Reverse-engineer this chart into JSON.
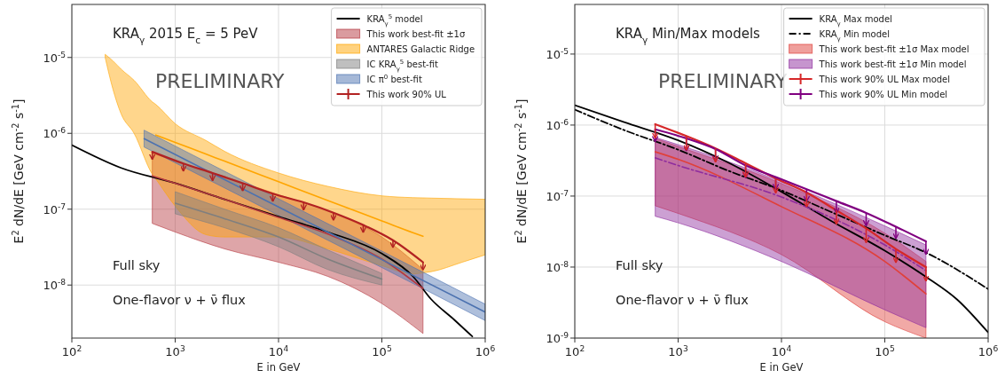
{
  "chart_data": [
    {
      "type": "line",
      "xlabel": "E in GeV",
      "ylabel": "E$^{2}$ dN/dE [GeV cm$^{-2}$ s$^{-1}$]",
      "log": "xy",
      "grid": true,
      "legend": "top right",
      "xlim": [
        100,
        1000000
      ],
      "ylim": [
        2e-09,
        5e-05
      ],
      "xticks": [
        {
          "value": 100,
          "label": "10$^{2}$"
        },
        {
          "value": 1000,
          "label": "10$^{3}$"
        },
        {
          "value": 10000,
          "label": "10$^{4}$"
        },
        {
          "value": 100000,
          "label": "10$^{5}$"
        },
        {
          "value": 1000000,
          "label": "10$^{6}$"
        }
      ],
      "yticks": [
        {
          "value": 1e-08,
          "label": "10$^{-8}$"
        },
        {
          "value": 1e-07,
          "label": "10$^{-7}$"
        },
        {
          "value": 1e-06,
          "label": "10$^{-6}$"
        },
        {
          "value": 1e-05,
          "label": "10$^{-5}$"
        }
      ],
      "annotations": [
        "KRA$_{γ}$ 2015  E$_{c}$ = 5 PeV",
        "PRELIMINARY",
        "Full sky",
        "One-flavor ν + ν̄ flux"
      ],
      "series": [
        {
          "name": "KRA$_{γ}$$^{5}$ model",
          "type": "line",
          "color": "#000000",
          "x": [
            100,
            300,
            1000,
            3000,
            10000,
            30000,
            100000,
            200000,
            300000,
            500000,
            750000
          ],
          "values": [
            7e-07,
            3.5e-07,
            2.2e-07,
            1.35e-07,
            8e-08,
            5e-08,
            2.6e-08,
            1.3e-08,
            6.5e-09,
            3.5e-09,
            2.1e-09
          ]
        },
        {
          "name": "This work best-fit ±1σ",
          "type": "line",
          "color": "#b5383f",
          "x": [
            600,
            1000,
            3000,
            10000,
            30000,
            100000,
            250000
          ],
          "values": [
            2.75e-07,
            2.2e-07,
            1.35e-07,
            7.8e-08,
            4.7e-08,
            2.2e-08,
            9e-09
          ],
          "lower": [
            6.5e-08,
            5e-08,
            3e-08,
            2e-08,
            1.3e-08,
            5.7e-09,
            2.3e-09
          ],
          "upper": [
            5.5e-07,
            4.3e-07,
            2.7e-07,
            1.55e-07,
            9.5e-08,
            4.3e-08,
            1.6e-08
          ]
        },
        {
          "name": "ANTARES Galactic Ridge",
          "type": "line",
          "color": "#ffa500",
          "x": [
            210,
            250,
            300,
            400,
            600,
            650,
            1000,
            2000,
            3000,
            10000,
            30000,
            100000,
            200000,
            250000,
            300000,
            600000,
            1000000
          ],
          "values": [
            null,
            null,
            null,
            null,
            null,
            9.5e-07,
            7.6e-07,
            5.3e-07,
            4.3e-07,
            2.3e-07,
            1.3e-07,
            7e-08,
            4.9e-08,
            4.4e-08,
            null,
            null,
            null
          ],
          "lower": [
            1e-05,
            3.8e-06,
            1.8e-06,
            1e-06,
            2.9e-07,
            2.5e-07,
            1.1e-07,
            4.6e-08,
            4.3e-08,
            4.3e-08,
            3e-08,
            1.8e-08,
            1.4e-08,
            1.45e-08,
            1.5e-08,
            2e-08,
            2.5e-08
          ],
          "upper": [
            1.1e-05,
            9e-06,
            7e-06,
            5e-06,
            2.6e-06,
            2.4e-06,
            1.34e-06,
            8e-07,
            5.8e-07,
            3e-07,
            2e-07,
            1.5e-07,
            1.42e-07,
            1.41e-07,
            1.4e-07,
            1.37e-07,
            1.35e-07
          ]
        },
        {
          "name": "IC KRA$_{γ}$$^{5}$ best-fit",
          "type": "line",
          "color": "#7f7f7f",
          "x": [
            1000,
            3000,
            10000,
            30000,
            100000
          ],
          "values": [
            1.2e-07,
            7.5e-08,
            4.3e-08,
            2.2e-08,
            1.2e-08
          ],
          "lower": [
            8.7e-08,
            5.7e-08,
            3.2e-08,
            1.6e-08,
            1e-08
          ],
          "upper": [
            1.7e-07,
            1e-07,
            5.7e-08,
            2.9e-08,
            1.42e-08
          ]
        },
        {
          "name": "IC π$^{0}$ best-fit",
          "type": "line",
          "color": "#4c72b0",
          "x": [
            500,
            10000,
            100000,
            1000000
          ],
          "values": [
            8.5e-07,
            1.07e-07,
            2.16e-08,
            4.4e-09
          ],
          "lower": [
            6.6e-07,
            8.3e-08,
            1.7e-08,
            3.4e-09
          ],
          "upper": [
            1.1e-06,
            1.37e-07,
            2.8e-08,
            5.6e-09
          ]
        },
        {
          "name": "This work 90% UL",
          "type": "line",
          "color": "#b22222",
          "x": [
            600,
            1200,
            2300,
            4500,
            8800,
            17500,
            34000,
            66000,
            128000,
            250000
          ],
          "values": [
            5.7e-07,
            4e-07,
            3e-07,
            2.2e-07,
            1.6e-07,
            1.23e-07,
            9e-08,
            6.2e-08,
            3.9e-08,
            2e-08
          ],
          "errors": [
            [
              4.5e-07,
              5.7e-07
            ],
            [
              3.15e-07,
              4e-07
            ],
            [
              2.36e-07,
              3e-07
            ],
            [
              1.73e-07,
              2.2e-07
            ],
            [
              1.26e-07,
              1.6e-07
            ],
            [
              9.7e-08,
              1.23e-07
            ],
            [
              7.1e-08,
              9e-08
            ],
            [
              4.9e-08,
              6.2e-08
            ],
            [
              3.1e-08,
              3.9e-08
            ],
            [
              1.57e-08,
              2e-08
            ]
          ]
        }
      ]
    },
    {
      "type": "line",
      "xlabel": "E in GeV",
      "ylabel": "E$^{2}$ dN/dE [GeV cm$^{-2}$ s$^{-1}$]",
      "log": "xy",
      "grid": true,
      "legend": "top right",
      "xlim": [
        100,
        1000000
      ],
      "ylim": [
        1e-09,
        5e-05
      ],
      "xticks": [
        {
          "value": 100,
          "label": "10$^{2}$"
        },
        {
          "value": 1000,
          "label": "10$^{3}$"
        },
        {
          "value": 10000,
          "label": "10$^{4}$"
        },
        {
          "value": 100000,
          "label": "10$^{5}$"
        },
        {
          "value": 1000000,
          "label": "10$^{6}$"
        }
      ],
      "yticks": [
        {
          "value": 1e-09,
          "label": "10$^{-9}$"
        },
        {
          "value": 1e-08,
          "label": "10$^{-8}$"
        },
        {
          "value": 1e-07,
          "label": "10$^{-7}$"
        },
        {
          "value": 1e-06,
          "label": "10$^{-6}$"
        },
        {
          "value": 1e-05,
          "label": "10$^{-5}$"
        }
      ],
      "annotations": [
        "KRA$_{γ}$ Min/Max models",
        "PRELIMINARY",
        "Full sky",
        "One-flavor ν + ν̄ flux"
      ],
      "series": [
        {
          "name": "KRA$_{γ}$ Max model",
          "type": "line",
          "color": "#000000",
          "x": [
            100,
            300,
            1000,
            3000,
            10000,
            30000,
            100000,
            250000,
            500000,
            1000000
          ],
          "values": [
            1.9e-06,
            1.1e-06,
            6.1e-07,
            3e-07,
            1.15e-07,
            4.5e-08,
            1.7e-08,
            7.3e-09,
            3.5e-09,
            1.2e-09
          ]
        },
        {
          "name": "KRA$_{γ}$ Min model",
          "type": "line",
          "line_style": "dashdot",
          "color": "#000000",
          "x": [
            100,
            300,
            1000,
            3000,
            10000,
            30000,
            100000,
            250000,
            1000000
          ],
          "values": [
            1.65e-06,
            8.5e-07,
            4.5e-07,
            2.3e-07,
            1.2e-07,
            6e-08,
            2.8e-08,
            1.6e-08,
            4.9e-09
          ]
        },
        {
          "name": "This work best-fit ±1σ Max model",
          "type": "line",
          "color": "#e0403a",
          "x": [
            600,
            1000,
            10000,
            100000,
            250000
          ],
          "values": [
            4.2e-07,
            3.3e-07,
            7.1e-08,
            1.2e-08,
            4.2e-09
          ],
          "lower": [
            7.3e-08,
            5.7e-08,
            1.5e-08,
            1.7e-09,
            1e-09
          ],
          "upper": [
            6.5e-07,
            5e-07,
            1.5e-07,
            3e-08,
            1.2e-08
          ]
        },
        {
          "name": "This work best-fit ±1σ Min model",
          "type": "line",
          "line_style": "dashdot",
          "color": "#8e2c9e",
          "x": [
            600,
            1000,
            10000,
            100000,
            250000
          ],
          "values": [
            3.45e-07,
            2.7e-07,
            9.7e-08,
            2.05e-08,
            8.9e-09
          ],
          "lower": [
            5.2e-08,
            4.2e-08,
            1.2e-08,
            2.5e-09,
            1.4e-09
          ],
          "upper": [
            6.7e-07,
            5.3e-07,
            1.6e-07,
            3.8e-08,
            2.05e-08
          ]
        },
        {
          "name": "This work 90% UL Max model",
          "type": "line",
          "color": "#d62728",
          "x": [
            600,
            1200,
            2300,
            4500,
            8800,
            17500,
            34000,
            66000,
            128000,
            250000
          ],
          "values": [
            1.03e-06,
            7e-07,
            4.7e-07,
            2.9e-07,
            1.78e-07,
            1.12e-07,
            6.3e-08,
            3.5e-08,
            1.8e-08,
            1e-08
          ],
          "errors": [
            [
              6.5e-07,
              1.03e-06
            ],
            [
              4.4e-07,
              7e-07
            ],
            [
              3e-07,
              4.7e-07
            ],
            [
              1.84e-07,
              2.9e-07
            ],
            [
              1.1e-07,
              1.78e-07
            ],
            [
              7e-08,
              1.12e-07
            ],
            [
              4e-08,
              6.3e-08
            ],
            [
              2.2e-08,
              3.5e-08
            ],
            [
              1.15e-08,
              1.8e-08
            ],
            [
              6.3e-09,
              1e-08
            ]
          ]
        },
        {
          "name": "This work 90% UL Min model",
          "type": "line",
          "color": "#800080",
          "x": [
            600,
            1200,
            2300,
            4500,
            8800,
            17500,
            34000,
            66000,
            128000,
            250000
          ],
          "values": [
            8.7e-07,
            6.5e-07,
            4.6e-07,
            2.7e-07,
            1.85e-07,
            1.25e-07,
            8.5e-08,
            5.8e-08,
            3.7e-08,
            2.3e-08
          ],
          "errors": [
            [
              5.8e-07,
              8.7e-07
            ],
            [
              4.3e-07,
              6.5e-07
            ],
            [
              3.1e-07,
              4.6e-07
            ],
            [
              1.8e-07,
              2.7e-07
            ],
            [
              1.23e-07,
              1.85e-07
            ],
            [
              8.3e-08,
              1.25e-07
            ],
            [
              5.7e-08,
              8.5e-08
            ],
            [
              3.8e-08,
              5.8e-08
            ],
            [
              2.5e-08,
              3.7e-08
            ],
            [
              1.5e-08,
              2.3e-08
            ]
          ]
        }
      ]
    }
  ]
}
